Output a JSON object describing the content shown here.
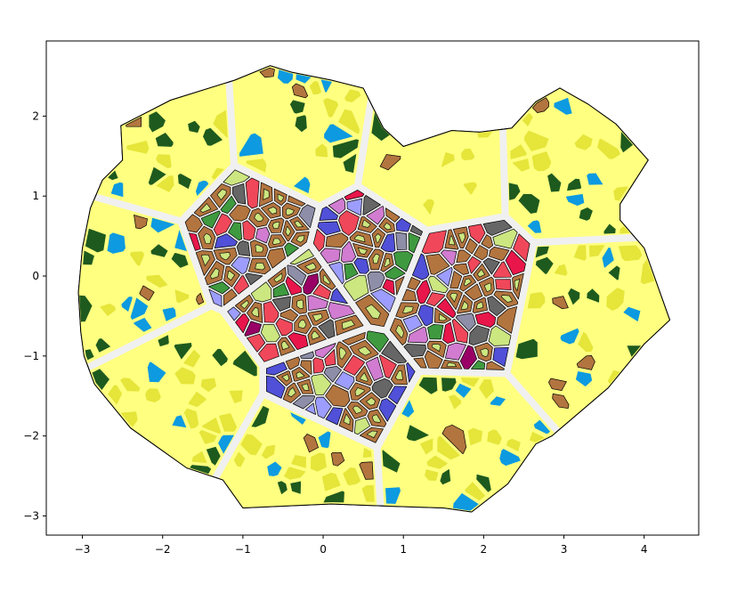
{
  "figure": {
    "xlim": [
      -3.45,
      4.68
    ],
    "ylim": [
      -3.24,
      2.94
    ],
    "xticks": [
      -3,
      -2,
      -1,
      0,
      1,
      2,
      3,
      4
    ],
    "yticks": [
      -3,
      -2,
      -1,
      0,
      1,
      2
    ],
    "xtick_labels": [
      "−3",
      "−2",
      "−1",
      "0",
      "1",
      "2",
      "3",
      "4"
    ],
    "ytick_labels": [
      "−3",
      "−2",
      "−1",
      "0",
      "1",
      "2"
    ],
    "palette": {
      "light_yellow": "#ffff80",
      "dark_yellow": "#e5e53a",
      "dark_green": "#1e5a1e",
      "green": "#3f9a3f",
      "blue": "#0d9ae0",
      "brown": "#b3753f",
      "red": "#f0485a",
      "crimson": "#e8164b",
      "magenta": "#990066",
      "lavender": "#9d9dff",
      "violet": "#d17cd1",
      "indigo": "#5050d8",
      "slate": "#8e8ea8",
      "dark_gray": "#666666",
      "gray": "#9a9a9a",
      "orange_brown": "#c07828",
      "lime": "#cce680",
      "road": "#f0f0f0",
      "outline": "#000000"
    },
    "district_count": 13,
    "random_seed": 73
  }
}
